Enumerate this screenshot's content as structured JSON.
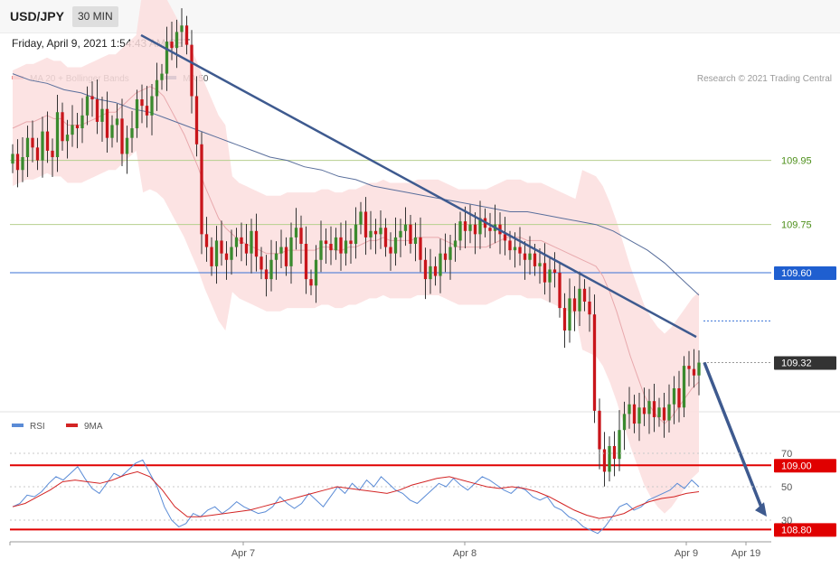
{
  "header": {
    "symbol": "USD/JPY",
    "timeframe": "30 MIN",
    "datetime": "Friday, April 9, 2021 1:54:43 AM CET"
  },
  "main_legend": [
    {
      "label": "MA 20 + Bollinger Bands",
      "color": "#ef8f8f"
    },
    {
      "label": "MA 50",
      "color": "#3b5a8e"
    }
  ],
  "copyright": "Research © 2021 Trading Central",
  "colors": {
    "up_candle": "#3a8a2e",
    "down_candle": "#c8151b",
    "bollinger_fill": "#fcdede",
    "ma20": "#e8a9ad",
    "ma50": "#5a6f9c",
    "trendline": "#3e5a8f",
    "resistance_green": "#b6cf8e",
    "resistance_blue": "#3872d6",
    "support_red": "#e00000",
    "current_price_bg": "#333333",
    "rsi": "#5a8bd6",
    "rsi_ma": "#d32424"
  },
  "chart_data": [
    {
      "type": "candlestick",
      "ylim": [
        108.75,
        110.6
      ],
      "x_tick_labels": [
        "Apr 7",
        "Apr 8",
        "Apr 9",
        "Apr 19"
      ],
      "current_price": 109.32,
      "levels": [
        {
          "value": 109.95,
          "label": "109.95",
          "role": "resistance",
          "color": "#b6cf8e",
          "text_color": "#4d8f1a"
        },
        {
          "value": 109.75,
          "label": "109.75",
          "role": "resistance",
          "color": "#b6cf8e",
          "text_color": "#4d8f1a"
        },
        {
          "value": 109.6,
          "label": "109.60",
          "role": "pivot",
          "color": "#3872d6",
          "text_color": "#ffffff",
          "badge": "#1f5fd0"
        },
        {
          "value": 109.0,
          "label": "109.00",
          "role": "support",
          "color": "#e00000",
          "text_color": "#ffffff",
          "badge": "#e00000"
        },
        {
          "value": 108.8,
          "label": "108.80",
          "role": "support",
          "color": "#e00000",
          "text_color": "#ffffff",
          "badge": "#e00000"
        }
      ],
      "close_series": [
        109.97,
        109.92,
        109.96,
        110.02,
        109.99,
        109.95,
        110.04,
        109.98,
        109.96,
        110.1,
        110.01,
        110.03,
        110.06,
        110.05,
        110.09,
        110.15,
        110.14,
        110.07,
        110.11,
        110.02,
        110.06,
        110.08,
        109.97,
        110.02,
        110.05,
        110.14,
        110.12,
        110.09,
        110.15,
        110.2,
        110.22,
        110.32,
        110.3,
        110.35,
        110.37,
        110.31,
        110.15,
        110.0,
        109.72,
        109.68,
        109.62,
        109.7,
        109.66,
        109.64,
        109.68,
        109.71,
        109.69,
        109.66,
        109.73,
        109.65,
        109.61,
        109.58,
        109.64,
        109.66,
        109.68,
        109.62,
        109.71,
        109.74,
        109.69,
        109.58,
        109.56,
        109.64,
        109.7,
        109.69,
        109.67,
        109.71,
        109.66,
        109.7,
        109.69,
        109.75,
        109.79,
        109.71,
        109.73,
        109.72,
        109.74,
        109.68,
        109.66,
        109.71,
        109.73,
        109.75,
        109.69,
        109.71,
        109.64,
        109.58,
        109.62,
        109.59,
        109.66,
        109.64,
        109.68,
        109.7,
        109.76,
        109.73,
        109.75,
        109.72,
        109.77,
        109.74,
        109.73,
        109.75,
        109.72,
        109.7,
        109.67,
        109.68,
        109.66,
        109.64,
        109.66,
        109.62,
        109.63,
        109.57,
        109.61,
        109.6,
        109.49,
        109.42,
        109.52,
        109.48,
        109.55,
        109.51,
        109.47,
        109.17,
        109.05,
        108.98,
        109.06,
        109.02,
        109.11,
        109.16,
        109.19,
        109.13,
        109.18,
        109.16,
        109.2,
        109.15,
        109.18,
        109.14,
        109.19,
        109.24,
        109.18,
        109.31,
        109.3,
        109.28,
        109.32
      ],
      "ma20_series": [
        110.05,
        110.06,
        110.07,
        110.07,
        110.08,
        110.09,
        110.08,
        110.08,
        110.06,
        110.06,
        110.06,
        110.07,
        110.08,
        110.09,
        110.1,
        110.1,
        110.12,
        110.14,
        110.16,
        110.17,
        110.18,
        110.17,
        110.15,
        110.11,
        110.07,
        110.03,
        109.98,
        109.93,
        109.87,
        109.82,
        109.77,
        109.74,
        109.72,
        109.7,
        109.69,
        109.68,
        109.67,
        109.66,
        109.66,
        109.66,
        109.67,
        109.67,
        109.67,
        109.67,
        109.67,
        109.68,
        109.68,
        109.67,
        109.67,
        109.68,
        109.68,
        109.69,
        109.7,
        109.7,
        109.71,
        109.7,
        109.7,
        109.7,
        109.7,
        109.71,
        109.71,
        109.71,
        109.71,
        109.7,
        109.69,
        109.68,
        109.68,
        109.68,
        109.68,
        109.68,
        109.69,
        109.7,
        109.71,
        109.71,
        109.71,
        109.7,
        109.7,
        109.7,
        109.69,
        109.68,
        109.67,
        109.66,
        109.65,
        109.64,
        109.63,
        109.62,
        109.59,
        109.54,
        109.48,
        109.41,
        109.34,
        109.28,
        109.22,
        109.18,
        109.15,
        109.13,
        109.15,
        109.18,
        109.21,
        109.24,
        109.26
      ],
      "ma50_series": [
        110.22,
        110.2,
        110.19,
        110.17,
        110.16,
        110.14,
        110.13,
        110.11,
        110.1,
        110.08,
        110.06,
        110.04,
        110.02,
        110.0,
        109.98,
        109.96,
        109.95,
        109.93,
        109.92,
        109.9,
        109.89,
        109.87,
        109.86,
        109.85,
        109.84,
        109.83,
        109.82,
        109.81,
        109.8,
        109.79,
        109.79,
        109.78,
        109.77,
        109.76,
        109.75,
        109.73,
        109.7,
        109.67,
        109.63,
        109.58,
        109.53
      ],
      "trendline": {
        "start": 110.34,
        "end": 109.4
      },
      "forecast_arrow": {
        "from": 109.32,
        "to": 108.84
      }
    },
    {
      "type": "line",
      "title": "RSI",
      "legend": [
        {
          "label": "RSI",
          "color": "#5a8bd6"
        },
        {
          "label": "9MA",
          "color": "#d32424"
        }
      ],
      "ylim": [
        20,
        75
      ],
      "y_ticks": [
        70,
        50,
        30
      ],
      "rsi_series": [
        38,
        40,
        45,
        44,
        47,
        52,
        56,
        54,
        58,
        62,
        55,
        49,
        46,
        52,
        58,
        56,
        60,
        64,
        66,
        58,
        50,
        38,
        30,
        26,
        28,
        34,
        32,
        36,
        38,
        34,
        37,
        41,
        38,
        36,
        34,
        35,
        38,
        44,
        40,
        37,
        40,
        46,
        42,
        38,
        44,
        50,
        46,
        52,
        48,
        54,
        50,
        56,
        52,
        48,
        46,
        42,
        40,
        44,
        48,
        52,
        50,
        55,
        51,
        48,
        52,
        56,
        54,
        51,
        48,
        46,
        50,
        48,
        44,
        42,
        44,
        38,
        36,
        32,
        30,
        26,
        24,
        22,
        26,
        32,
        38,
        40,
        36,
        38,
        42,
        44,
        46,
        48,
        52,
        49,
        54,
        50
      ],
      "rsi_ma_series": [
        38,
        40,
        44,
        48,
        53,
        54,
        53,
        52,
        54,
        57,
        59,
        56,
        48,
        38,
        32,
        32,
        33,
        34,
        35,
        36,
        38,
        40,
        42,
        44,
        46,
        48,
        50,
        49,
        48,
        47,
        46,
        48,
        51,
        53,
        55,
        56,
        54,
        52,
        50,
        49,
        50,
        49,
        47,
        44,
        40,
        36,
        33,
        31,
        32,
        34,
        38,
        41,
        43,
        44,
        46,
        47
      ]
    }
  ]
}
